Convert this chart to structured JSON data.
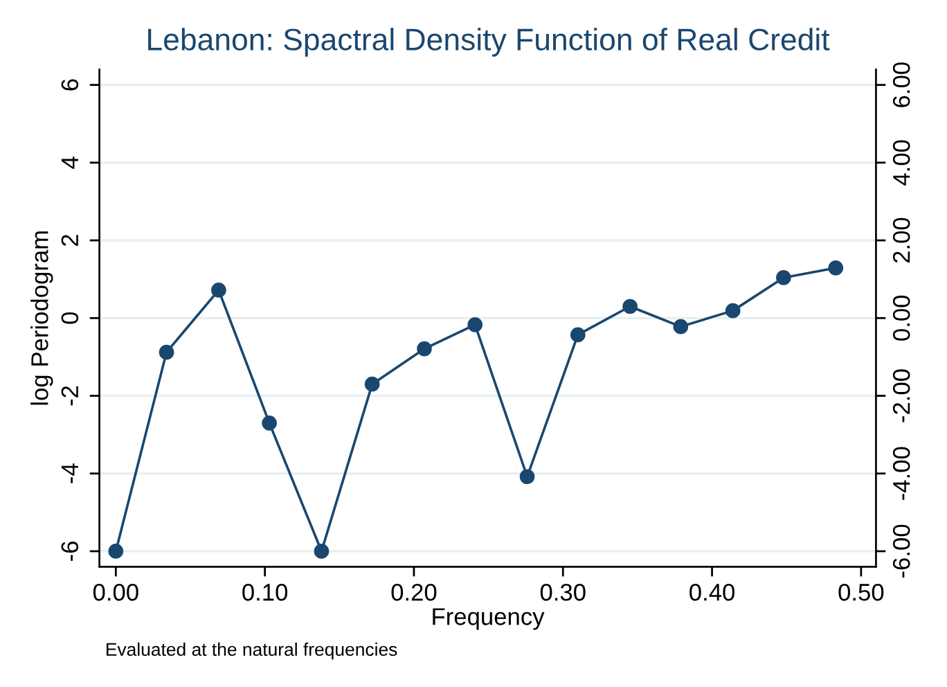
{
  "chart_data": {
    "type": "line",
    "title": "Lebanon: Spactral Density Function of Real Credit",
    "xlabel": "Frequency",
    "ylabel": "log Periodogram",
    "annotations": [
      "Evaluated at the natural frequencies"
    ],
    "x": [
      0.0,
      0.034,
      0.069,
      0.103,
      0.138,
      0.172,
      0.207,
      0.241,
      0.276,
      0.31,
      0.345,
      0.379,
      0.414,
      0.448,
      0.483
    ],
    "series": [
      {
        "color": "#1a476f",
        "values": [
          -6.0,
          -0.88,
          0.72,
          -2.7,
          -6.0,
          -1.7,
          -0.79,
          -0.17,
          -4.08,
          -0.43,
          0.3,
          -0.22,
          0.19,
          1.04,
          1.29
        ]
      }
    ],
    "xlim": [
      -0.011,
      0.51
    ],
    "xticks": [
      {
        "value": 0,
        "label": "0.00"
      },
      {
        "value": 0.1,
        "label": "0.10"
      },
      {
        "value": 0.2,
        "label": "0.20"
      },
      {
        "value": 0.3,
        "label": "0.30"
      },
      {
        "value": 0.4,
        "label": "0.40"
      },
      {
        "value": 0.5,
        "label": "0.50"
      }
    ],
    "ylim": [
      -6.4,
      6.4
    ],
    "yticks": [
      -6,
      -4,
      -2,
      0,
      2,
      4,
      6
    ],
    "y2lim": [
      -6.4,
      6.4
    ],
    "y2ticks": [
      {
        "value": -6,
        "label": "-6.00"
      },
      {
        "value": -4,
        "label": "-4.00"
      },
      {
        "value": -2,
        "label": "-2.00"
      },
      {
        "value": 0,
        "label": "0.00"
      },
      {
        "value": 2,
        "label": "2.00"
      },
      {
        "value": 4,
        "label": "4.00"
      },
      {
        "value": 6,
        "label": "6.00"
      }
    ],
    "grid": "y",
    "marker": "circle",
    "line_style": "solid"
  }
}
